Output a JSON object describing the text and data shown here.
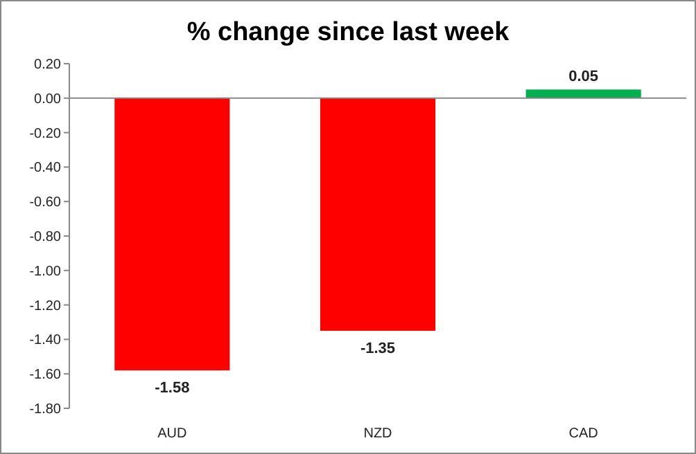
{
  "chart_data": {
    "type": "bar",
    "title": "% change since last week",
    "categories": [
      "AUD",
      "NZD",
      "CAD"
    ],
    "values": [
      -1.58,
      -1.35,
      0.05
    ],
    "colors": [
      "#ff0000",
      "#ff0000",
      "#00b050"
    ],
    "ylim": [
      -1.8,
      0.2
    ],
    "yticks": [
      {
        "value": 0.2,
        "label": "0.20"
      },
      {
        "value": 0,
        "label": "0.00"
      },
      {
        "value": -0.2,
        "label": "-0.20"
      },
      {
        "value": -0.4,
        "label": "-0.40"
      },
      {
        "value": -0.6,
        "label": "-0.60"
      },
      {
        "value": -0.8,
        "label": "-0.80"
      },
      {
        "value": -1,
        "label": "-1.00"
      },
      {
        "value": -1.2,
        "label": "-1.20"
      },
      {
        "value": -1.4,
        "label": "-1.40"
      },
      {
        "value": -1.6,
        "label": "-1.60"
      },
      {
        "value": -1.8,
        "label": "-1.80"
      }
    ],
    "data_labels": true
  }
}
